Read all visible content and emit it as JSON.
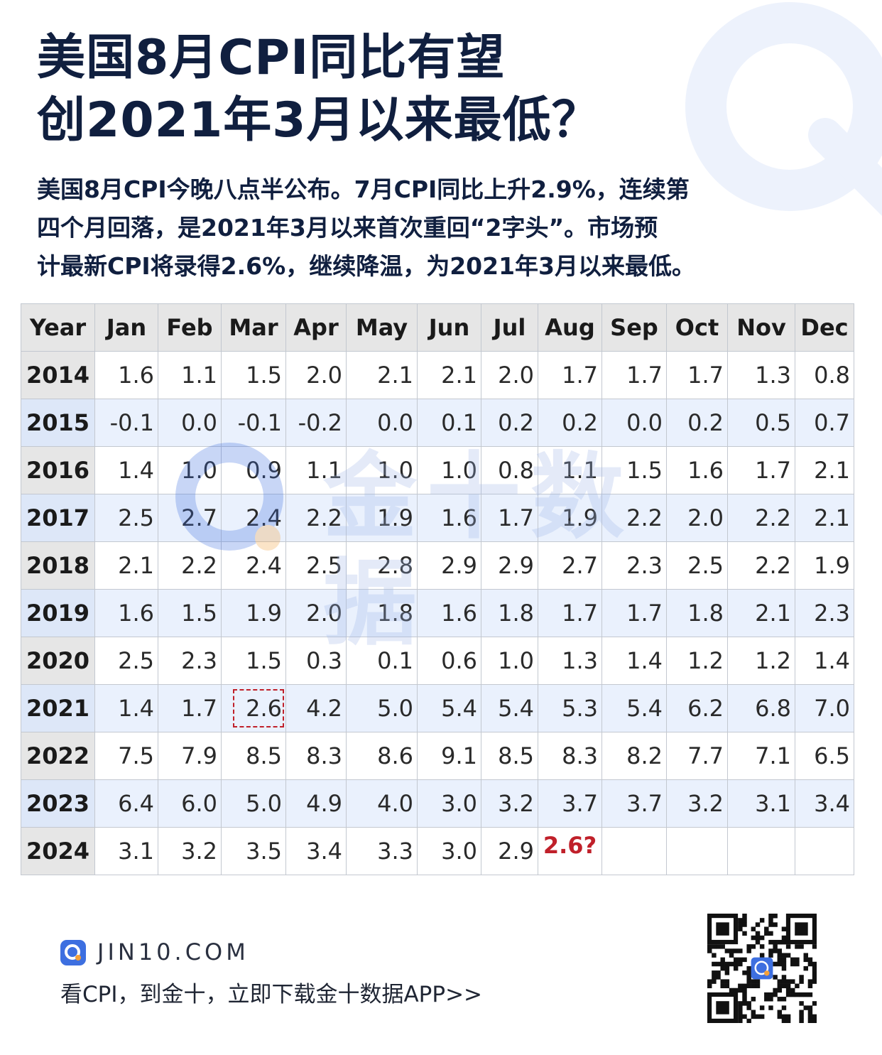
{
  "title": {
    "line1": "美国8月CPI同比有望",
    "line2": "创2021年3月以来最低？"
  },
  "intro": {
    "line1": "美国8月CPI今晚八点半公布。7月CPI同比上升2.9%，连续第",
    "line2": "四个月回落，是2021年3月以来首次重回“2字头”。市场预",
    "line3": "计最新CPI将录得2.6%，继续降温，为2021年3月以来最低。"
  },
  "table": {
    "headers": [
      "Year",
      "Jan",
      "Feb",
      "Mar",
      "Apr",
      "May",
      "Jun",
      "Jul",
      "Aug",
      "Sep",
      "Oct",
      "Nov",
      "Dec"
    ],
    "rows": [
      {
        "year": "2014",
        "values": [
          "1.6",
          "1.1",
          "1.5",
          "2.0",
          "2.1",
          "2.1",
          "2.0",
          "1.7",
          "1.7",
          "1.7",
          "1.3",
          "0.8"
        ]
      },
      {
        "year": "2015",
        "values": [
          "-0.1",
          "0.0",
          "-0.1",
          "-0.2",
          "0.0",
          "0.1",
          "0.2",
          "0.2",
          "0.0",
          "0.2",
          "0.5",
          "0.7"
        ]
      },
      {
        "year": "2016",
        "values": [
          "1.4",
          "1.0",
          "0.9",
          "1.1",
          "1.0",
          "1.0",
          "0.8",
          "1.1",
          "1.5",
          "1.6",
          "1.7",
          "2.1"
        ]
      },
      {
        "year": "2017",
        "values": [
          "2.5",
          "2.7",
          "2.4",
          "2.2",
          "1.9",
          "1.6",
          "1.7",
          "1.9",
          "2.2",
          "2.0",
          "2.2",
          "2.1"
        ]
      },
      {
        "year": "2018",
        "values": [
          "2.1",
          "2.2",
          "2.4",
          "2.5",
          "2.8",
          "2.9",
          "2.9",
          "2.7",
          "2.3",
          "2.5",
          "2.2",
          "1.9"
        ]
      },
      {
        "year": "2019",
        "values": [
          "1.6",
          "1.5",
          "1.9",
          "2.0",
          "1.8",
          "1.6",
          "1.8",
          "1.7",
          "1.7",
          "1.8",
          "2.1",
          "2.3"
        ]
      },
      {
        "year": "2020",
        "values": [
          "2.5",
          "2.3",
          "1.5",
          "0.3",
          "0.1",
          "0.6",
          "1.0",
          "1.3",
          "1.4",
          "1.2",
          "1.2",
          "1.4"
        ]
      },
      {
        "year": "2021",
        "values": [
          "1.4",
          "1.7",
          "2.6",
          "4.2",
          "5.0",
          "5.4",
          "5.4",
          "5.3",
          "5.4",
          "6.2",
          "6.8",
          "7.0"
        ]
      },
      {
        "year": "2022",
        "values": [
          "7.5",
          "7.9",
          "8.5",
          "8.3",
          "8.6",
          "9.1",
          "8.5",
          "8.3",
          "8.2",
          "7.7",
          "7.1",
          "6.5"
        ]
      },
      {
        "year": "2023",
        "values": [
          "6.4",
          "6.0",
          "5.0",
          "4.9",
          "4.0",
          "3.0",
          "3.2",
          "3.7",
          "3.7",
          "3.2",
          "3.1",
          "3.4"
        ]
      },
      {
        "year": "2024",
        "values": [
          "3.1",
          "3.2",
          "3.5",
          "3.4",
          "3.3",
          "3.0",
          "2.9",
          "2.6?",
          "",
          "",
          "",
          ""
        ]
      }
    ],
    "highlighted_cell": {
      "year": "2021",
      "month": "Mar",
      "value": "2.6"
    },
    "forecast_cell": {
      "year": "2024",
      "month": "Aug",
      "value": "2.6?"
    }
  },
  "watermark": {
    "text": "金十数据"
  },
  "footer": {
    "site": "JIN10.COM",
    "cta": "看CPI，到金十，立即下载金十数据APP>>"
  },
  "icons": [
    "jin10-logo-icon",
    "qr-code-icon"
  ],
  "colors": {
    "title": "#101f3f",
    "accent_red": "#c0202a",
    "row_tint": "#eaf1fd",
    "brand_blue": "#3d6fe0",
    "brand_orange": "#f3a03a"
  }
}
